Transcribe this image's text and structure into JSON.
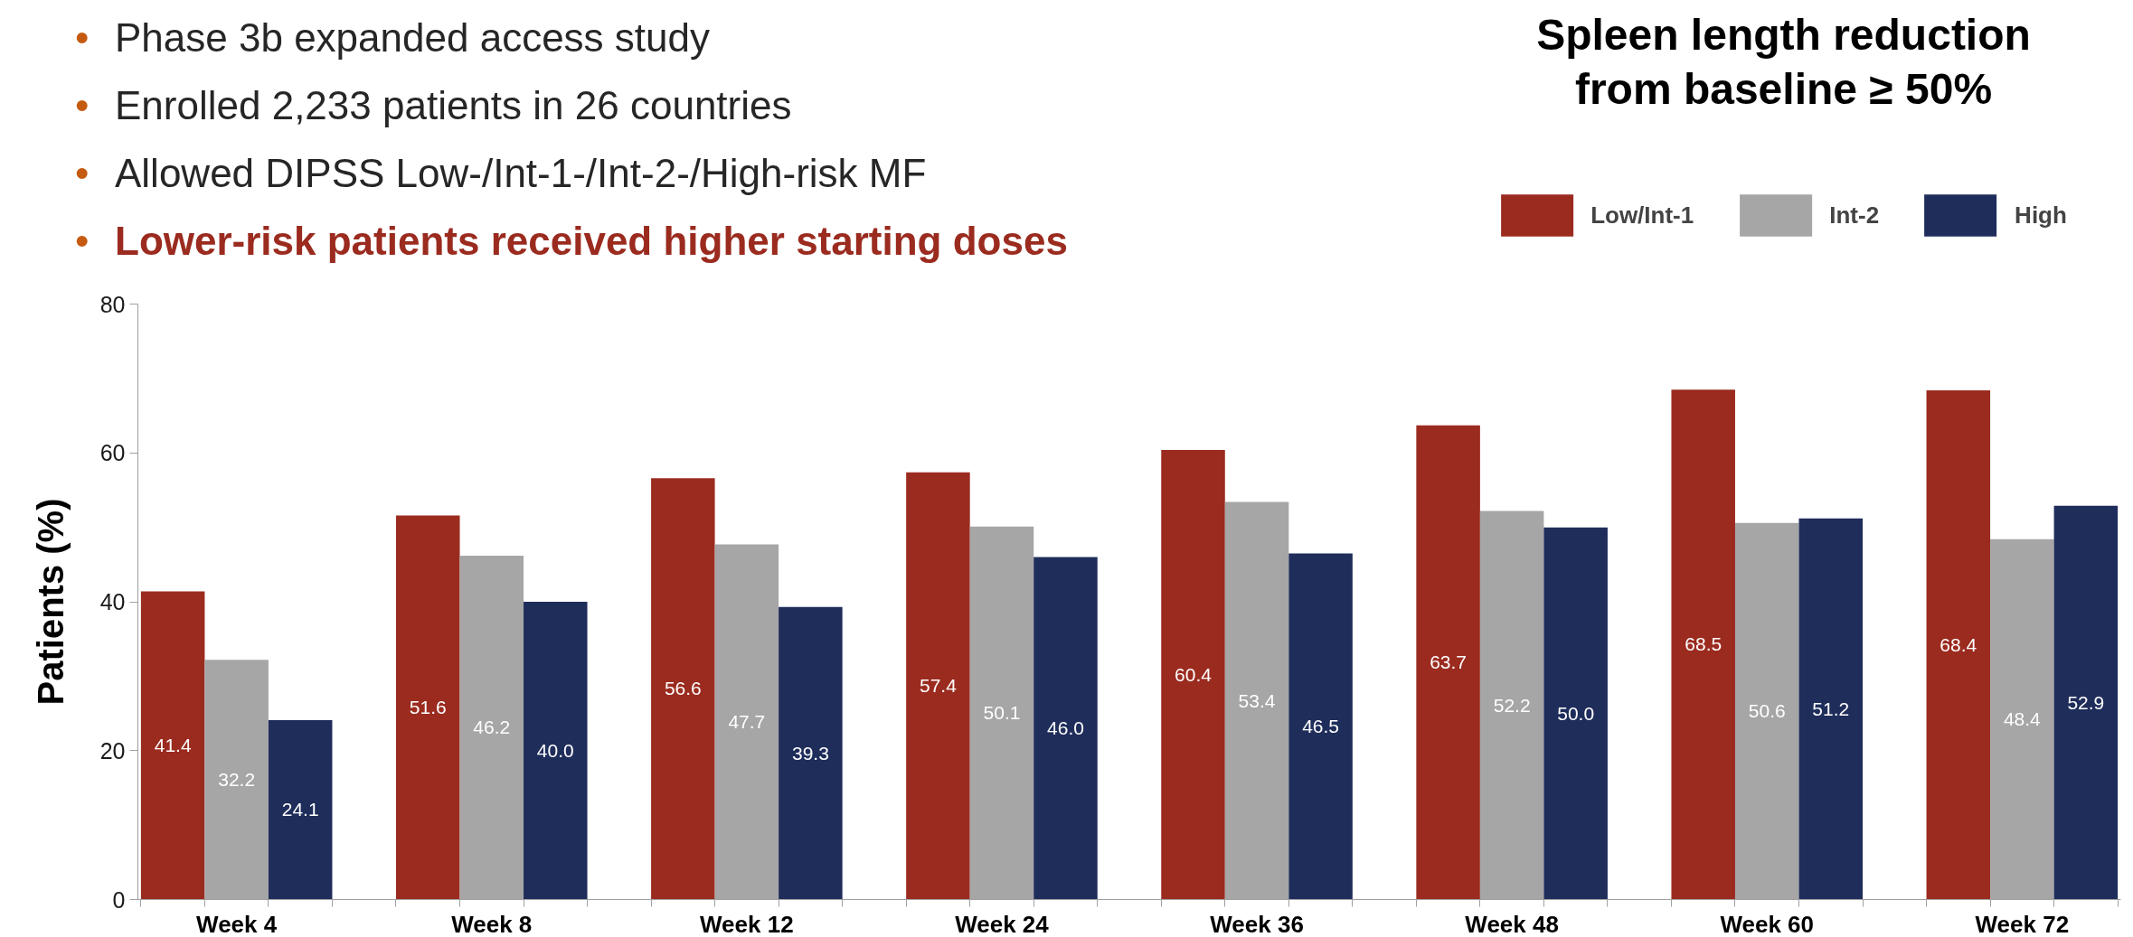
{
  "chart_data": {
    "type": "bar",
    "title": "Spleen length reduction from baseline ≥ 50%",
    "ylabel": "Patients (%)",
    "annotations": [
      "• Phase 3b expanded access study",
      "• Enrolled 2,233 patients in 26 countries",
      "• Allowed DIPSS Low-/Int-1-/Int-2-/High-risk MF",
      "• Lower-risk patients received higher starting doses"
    ],
    "categories": [
      "Week 4",
      "Week 8",
      "Week 12",
      "Week 24",
      "Week 36",
      "Week 48",
      "Week 60",
      "Week 72"
    ],
    "series": [
      {
        "name": "Low/Int-1",
        "color": "#9b2b1f",
        "values": [
          41.4,
          51.6,
          56.6,
          57.4,
          60.4,
          63.7,
          68.5,
          68.4
        ],
        "value_labels": [
          "41.4",
          "51.6",
          "56.6",
          "57.4",
          "60.4",
          "63.7",
          "68.5",
          "68.4"
        ]
      },
      {
        "name": "Int-2",
        "color": "#a6a6a6",
        "values": [
          32.2,
          46.2,
          47.7,
          50.1,
          53.4,
          52.2,
          50.6,
          48.4
        ],
        "value_labels": [
          "32.2",
          "46.2",
          "47.7",
          "50.1",
          "53.4",
          "52.2",
          "50.6",
          "48.4"
        ]
      },
      {
        "name": "High",
        "color": "#1f2d5b",
        "values": [
          24.1,
          40.0,
          39.3,
          46.0,
          46.5,
          50.0,
          51.2,
          52.9
        ],
        "value_labels": [
          "24.1",
          "40.0",
          "39.3",
          "46.0",
          "46.5",
          "50.0",
          "51.2",
          "52.9"
        ]
      }
    ],
    "ylim": [
      0,
      80
    ],
    "yticks": [
      0,
      20,
      40,
      60,
      80
    ],
    "grid": false,
    "legend": "top right"
  }
}
